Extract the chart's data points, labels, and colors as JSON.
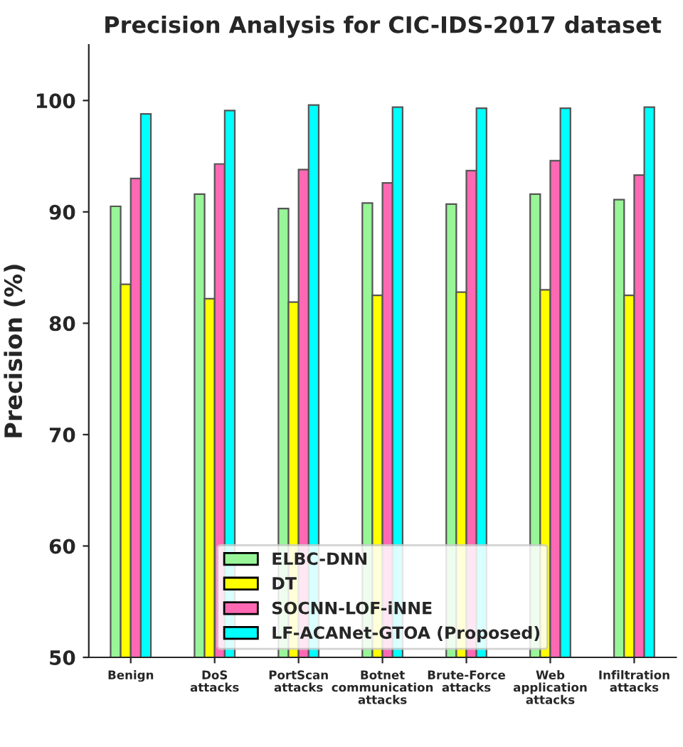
{
  "chart_data": {
    "type": "bar",
    "title": "Precision Analysis for CIC-IDS-2017 dataset",
    "ylabel": "Precision (%)",
    "categories": [
      "Benign",
      "DoS\nattacks",
      "PortScan\nattacks",
      "Botnet\ncommunication\nattacks",
      "Brute-Force\nattacks",
      "Web\napplication\nattacks",
      "Infiltration\nattacks"
    ],
    "series": [
      {
        "name": "ELBC-DNN",
        "color": "#98f598",
        "values": [
          90.5,
          91.6,
          90.3,
          90.8,
          90.7,
          91.6,
          91.1
        ]
      },
      {
        "name": "DT",
        "color": "#ffff00",
        "values": [
          83.5,
          82.2,
          81.9,
          82.5,
          82.8,
          83.0,
          82.5
        ]
      },
      {
        "name": "SOCNN-LOF-iNNE",
        "color": "#ff69b4",
        "values": [
          93.0,
          94.3,
          93.8,
          92.6,
          93.7,
          94.6,
          93.3
        ]
      },
      {
        "name": "LF-ACANet-GTOA (Proposed)",
        "color": "#00ffff",
        "values": [
          98.8,
          99.1,
          99.6,
          99.4,
          99.3,
          99.3,
          99.4
        ]
      }
    ],
    "ylim": [
      50,
      105
    ],
    "yticks": [
      50,
      60,
      70,
      80,
      90,
      100
    ],
    "grid": false,
    "legend": "bottom"
  }
}
